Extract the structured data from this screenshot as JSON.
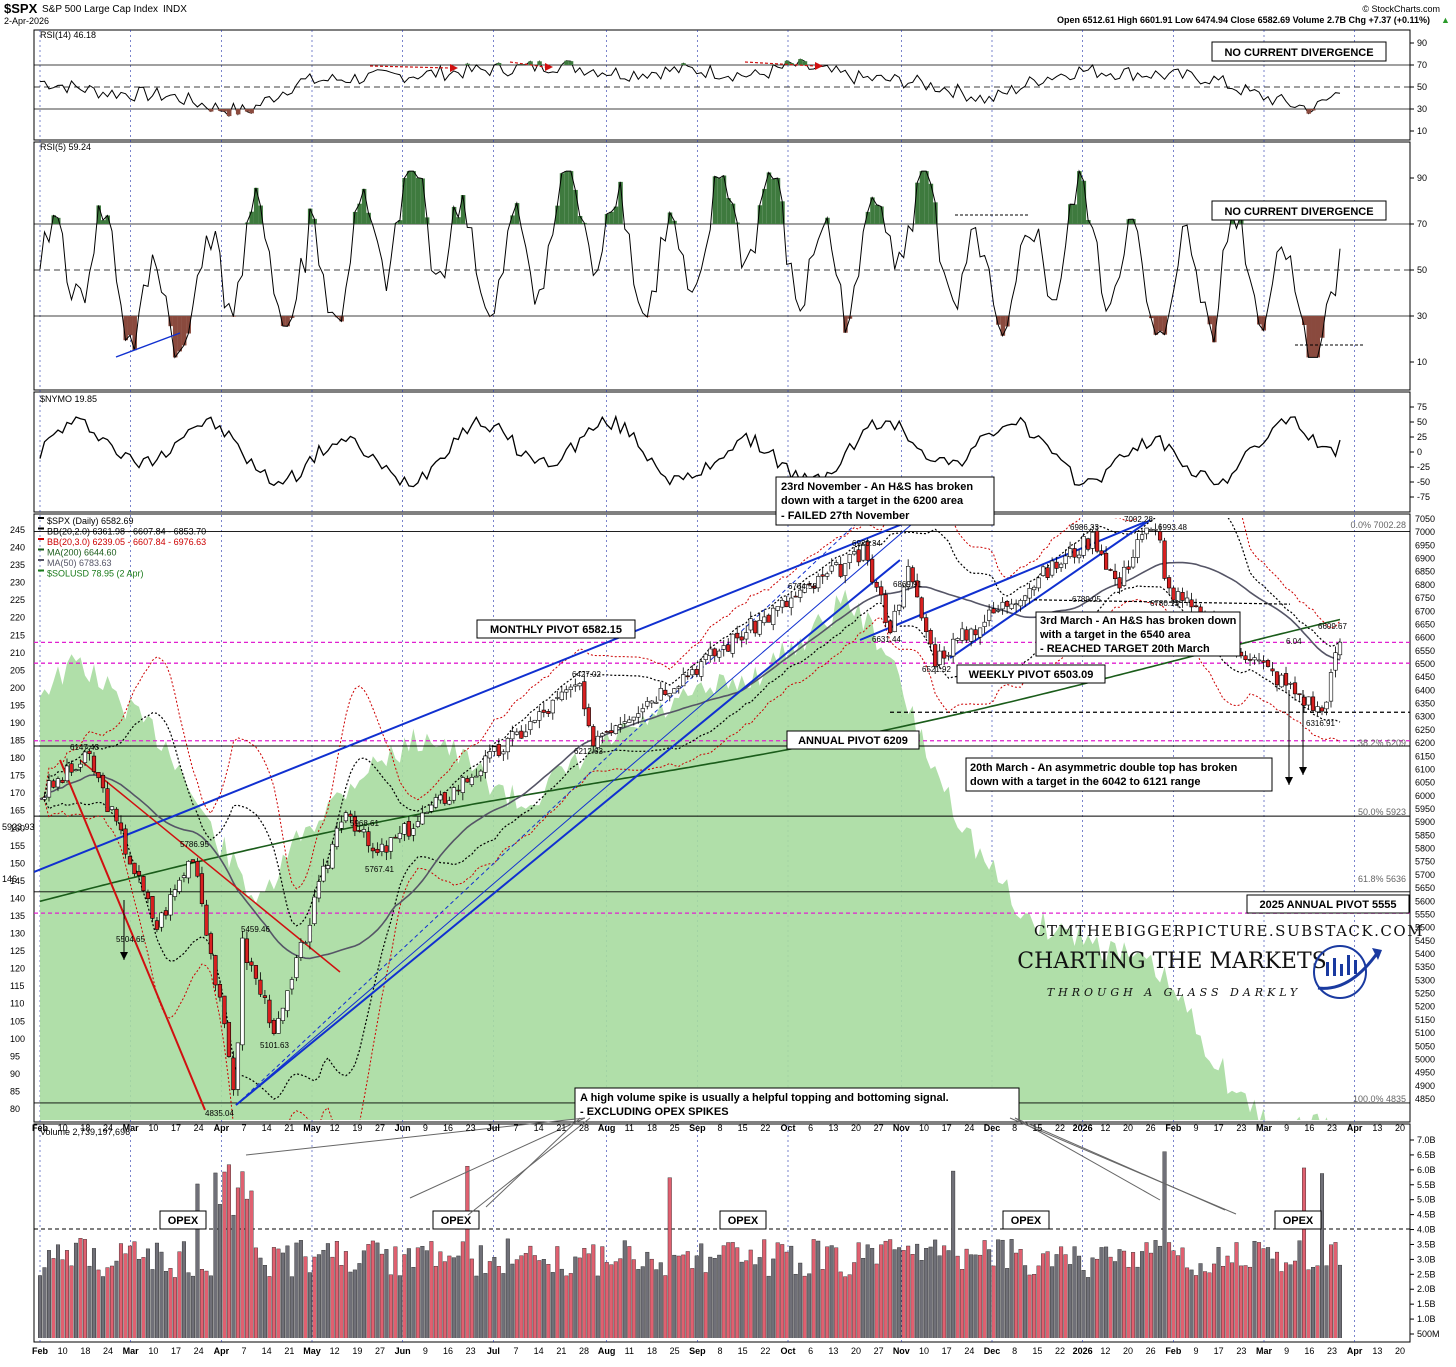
{
  "header": {
    "symbol": "$SPX",
    "name": "S&P 500 Large Cap Index",
    "exchange": "INDX",
    "date": "2-Apr-2026",
    "copyright": "© StockCharts.com",
    "ohlc": "Open 6512.61  High 6601.91  Low 6474.94  Close 6582.69  Volume 2.7B  Chg +7.37 (+0.11%)",
    "up_arrow": "▲"
  },
  "panels": {
    "rsi14": {
      "label": "RSI(14) 46.18",
      "ticks": [
        "90",
        "70",
        "50",
        "30",
        "10"
      ],
      "note": "NO CURRENT DIVERGENCE"
    },
    "rsi5": {
      "label": "RSI(5) 59.24",
      "ticks": [
        "90",
        "70",
        "50",
        "30",
        "10"
      ],
      "note": "NO CURRENT DIVERGENCE"
    },
    "nymo": {
      "label": "$NYMO 19.85",
      "ticks": [
        "75",
        "50",
        "25",
        "0",
        "-25",
        "-50",
        "-75"
      ]
    },
    "price": {
      "legend": [
        "$SPX (Daily) 6582.69",
        "BB(20,2.0) 6361.98 - 6607.84 - 6853.70",
        "BB(20,3.0) 6239.05 - 6607.84 - 6976.63",
        "MA(200) 6644.60",
        "MA(50) 6783.63",
        "$SOLUSD 78.95 (2 Apr)"
      ],
      "legend_colors": [
        "#000000",
        "#000000",
        "#cc0000",
        "#1a5c1a",
        "#555566",
        "#1a7a1a"
      ],
      "left_ticks": [
        "245",
        "240",
        "235",
        "230",
        "225",
        "220",
        "215",
        "210",
        "205",
        "200",
        "195",
        "190",
        "185",
        "180",
        "175",
        "170",
        "165",
        "160",
        "155",
        "150",
        "145",
        "140",
        "135",
        "130",
        "125",
        "120",
        "115",
        "110",
        "105",
        "100",
        "95",
        "90",
        "85",
        "80"
      ],
      "right_ticks": [
        "7050",
        "7000",
        "6950",
        "6900",
        "6850",
        "6800",
        "6750",
        "6700",
        "6650",
        "6600",
        "6550",
        "6500",
        "6450",
        "6400",
        "6350",
        "6300",
        "6250",
        "6200",
        "6150",
        "6100",
        "6050",
        "6000",
        "5950",
        "5900",
        "5850",
        "5800",
        "5750",
        "5700",
        "5650",
        "5600",
        "5550",
        "5500",
        "5450",
        "5400",
        "5350",
        "5300",
        "5250",
        "5200",
        "5150",
        "5100",
        "5050",
        "5000",
        "4950",
        "4900",
        "4850"
      ],
      "left_edge_labels": [
        "5923.93",
        "146"
      ],
      "fib_labels": [
        "0.0% 7002.28",
        "38.2% 6209",
        "50.0% 5923",
        "61.8% 5636",
        "100.0% 4835"
      ],
      "price_labels": [
        "6147.43",
        "5786.95",
        "5504.65",
        "5459.46",
        "5101.63",
        "4835.04",
        "5968.61",
        "5767.41",
        "6427.02",
        "6212.63",
        "6764.58",
        "6920.34",
        "6869.91",
        "6631.44",
        "6521.92",
        "6986.33",
        "7002.28",
        "6993.48",
        "6789.05",
        "6780.13",
        "6609.67",
        "6316.91",
        "6.04"
      ],
      "pivots": {
        "monthly": "MONTHLY PIVOT 6582.15",
        "weekly": "WEEKLY PIVOT 6503.09",
        "annual": "ANNUAL PIVOT 6209",
        "annual2025": "2025 ANNUAL PIVOT 5555"
      },
      "annotations": {
        "nov": [
          "23rd November - An H&S has broken",
          "down with a target in the 6200 area",
          "- FAILED 27th November"
        ],
        "mar3": [
          "3rd March - An H&S has broken down",
          "with a target in the 6540 area",
          "- REACHED TARGET 20th March"
        ],
        "mar20": [
          "20th March - An asymmetric double top has broken",
          "down with a target in the 6042 to 6121 range"
        ],
        "volume": [
          "A high volume spike is usually a helpful topping and bottoming signal.",
          "- EXCLUDING OPEX SPIKES"
        ]
      },
      "watermark": {
        "url": "CTMTHEBIGGERPICTURE.SUBSTACK.COM",
        "title": "CHARTING THE MARKETS",
        "tagline": "THROUGH A GLASS DARKLY"
      }
    },
    "volume": {
      "label": "Volume 2,739,197,696",
      "ticks": [
        "7.0B",
        "6.5B",
        "6.0B",
        "5.5B",
        "5.0B",
        "4.5B",
        "4.0B",
        "3.5B",
        "3.0B",
        "2.5B",
        "2.0B",
        "1.5B",
        "1.0B",
        "500M"
      ],
      "opex": "OPEX"
    }
  },
  "x_axis": [
    "Feb",
    "10",
    "18",
    "24",
    "Mar",
    "10",
    "17",
    "24",
    "Apr",
    "7",
    "14",
    "21",
    "May",
    "12",
    "19",
    "27",
    "Jun",
    "9",
    "16",
    "23",
    "Jul",
    "7",
    "14",
    "21",
    "28",
    "Aug",
    "11",
    "18",
    "25",
    "Sep",
    "8",
    "15",
    "22",
    "Oct",
    "6",
    "13",
    "20",
    "27",
    "Nov",
    "10",
    "17",
    "24",
    "Dec",
    "8",
    "15",
    "22",
    "2026",
    "12",
    "20",
    "26",
    "Feb",
    "9",
    "17",
    "23",
    "Mar",
    "9",
    "16",
    "23",
    "Apr",
    "13",
    "20"
  ],
  "chart_data": {
    "type": "line",
    "title": "$SPX S&P 500 Large Cap Index INDX",
    "ylabel": "",
    "ylim": [
      4835,
      7050
    ],
    "series": [
      {
        "name": "$SPX (Daily)",
        "points": [
          {
            "date": "2025-02-19",
            "value": 6147.43
          },
          {
            "date": "2025-03-13",
            "value": 5504.65
          },
          {
            "date": "2025-03-25",
            "value": 5786.95
          },
          {
            "date": "2025-04-08",
            "value": 4835.04
          },
          {
            "date": "2025-04-09",
            "value": 5459.46
          },
          {
            "date": "2025-04-21",
            "value": 5101.63
          },
          {
            "date": "2025-05-13",
            "value": 5968.61
          },
          {
            "date": "2025-05-23",
            "value": 5767.41
          },
          {
            "date": "2025-07-28",
            "value": 6427.02
          },
          {
            "date": "2025-08-01",
            "value": 6212.63
          },
          {
            "date": "2025-10-08",
            "value": 6764.58
          },
          {
            "date": "2025-10-29",
            "value": 6920.34
          },
          {
            "date": "2025-11-12",
            "value": 6869.91
          },
          {
            "date": "2025-11-07",
            "value": 6631.44
          },
          {
            "date": "2025-11-21",
            "value": 6521.92
          },
          {
            "date": "2026-01-12",
            "value": 6986.33
          },
          {
            "date": "2026-01-27",
            "value": 7002.28
          },
          {
            "date": "2026-02-02",
            "value": 6993.48
          },
          {
            "date": "2026-01-20",
            "value": 6789.05
          },
          {
            "date": "2026-02-05",
            "value": 6780.13
          },
          {
            "date": "2026-03-27",
            "value": 6316.91
          },
          {
            "date": "2026-04-02",
            "value": 6582.69
          }
        ]
      }
    ],
    "last_values": {
      "rsi14": 46.18,
      "rsi5": 59.24,
      "nymo": 19.85,
      "volume": 2739197696,
      "solusd": 78.95,
      "ma200": 6644.6,
      "ma50": 6783.63
    },
    "levels": {
      "monthly_pivot": 6582.15,
      "weekly_pivot": 6503.09,
      "annual_pivot": 6209,
      "annual_pivot_2025": 5555
    },
    "colors": {
      "up": "#ffffff",
      "down": "#d82020",
      "bb2": "#000000",
      "bb3": "#cc0000",
      "ma200": "#1a5c1a",
      "ma50": "#555566",
      "sol_area": "#9fd69a",
      "pivot": "#e020d0",
      "trend": "#1030d0",
      "vol_up": "#e06070",
      "vol_down": "#707078",
      "rsi_over": "#3e7a3e",
      "rsi_under": "#8a4a3e"
    },
    "grid": true,
    "legend_position": "top-left"
  }
}
